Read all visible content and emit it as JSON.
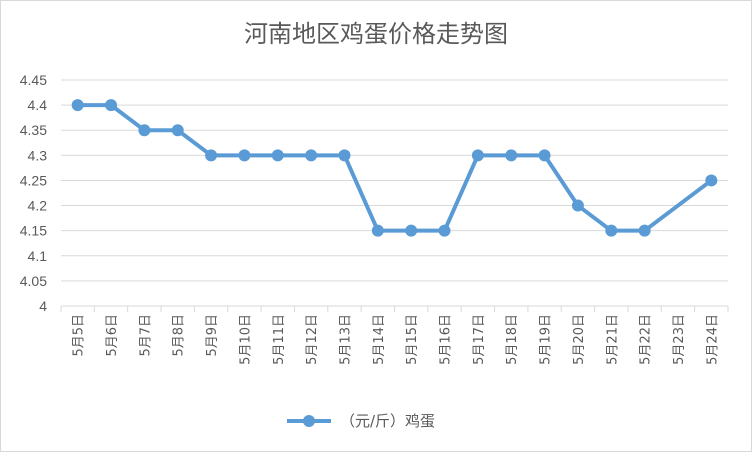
{
  "chart_data": {
    "type": "line",
    "title": "河南地区鸡蛋价格走势图",
    "xlabel": "",
    "ylabel": "",
    "ylim": [
      4,
      4.45
    ],
    "y_ticks": [
      "4",
      "4.05",
      "4.1",
      "4.15",
      "4.2",
      "4.25",
      "4.3",
      "4.35",
      "4.4",
      "4.45"
    ],
    "categories": [
      "5月5日",
      "5月6日",
      "5月7日",
      "5月8日",
      "5月9日",
      "5月10日",
      "5月11日",
      "5月12日",
      "5月13日",
      "5月14日",
      "5月15日",
      "5月16日",
      "5月17日",
      "5月18日",
      "5月19日",
      "5月20日",
      "5月21日",
      "5月22日",
      "5月23日",
      "5月24日"
    ],
    "series": [
      {
        "name": "（元/斤）鸡蛋",
        "values": [
          4.4,
          4.4,
          4.35,
          4.35,
          4.3,
          4.3,
          4.3,
          4.3,
          4.3,
          4.15,
          4.15,
          4.15,
          4.3,
          4.3,
          4.3,
          4.2,
          4.15,
          4.15,
          null,
          4.25
        ],
        "color": "#5b9bd5"
      }
    ],
    "grid": true,
    "legend_position": "bottom"
  }
}
